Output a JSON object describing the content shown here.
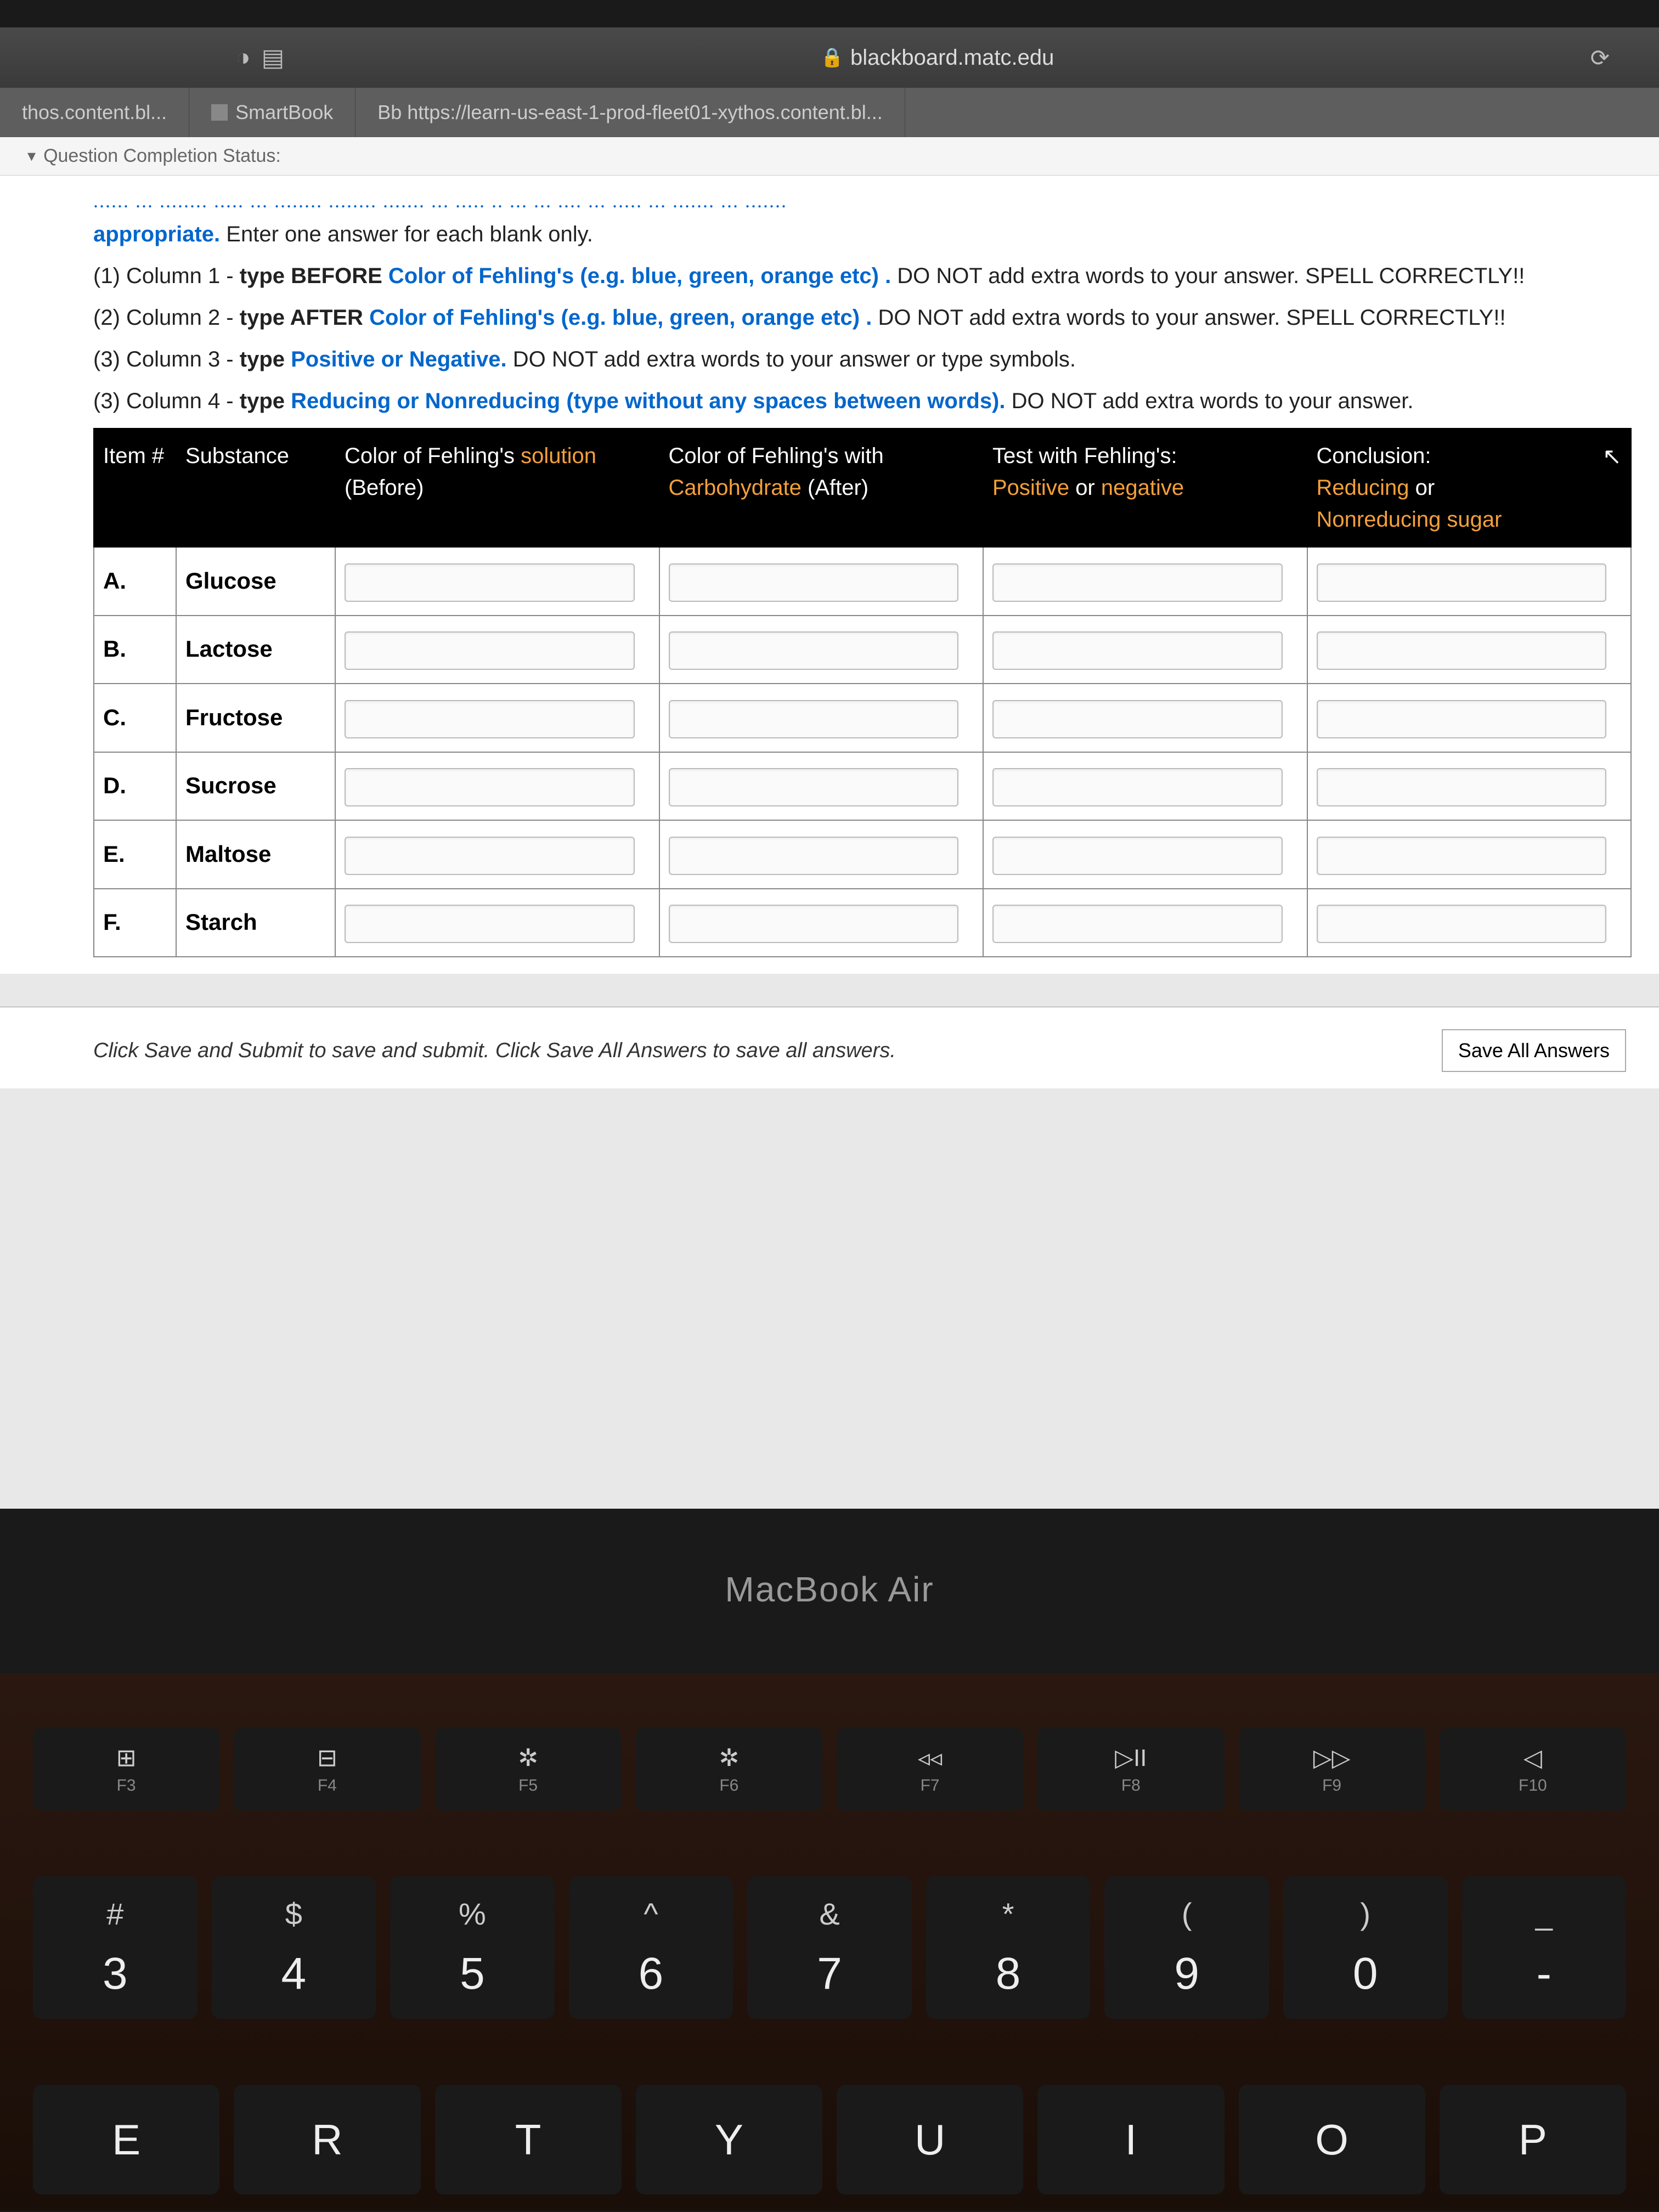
{
  "browser": {
    "url_domain": "blackboard.matc.edu",
    "tabs": [
      {
        "label": "thos.content.bl..."
      },
      {
        "label": "SmartBook"
      },
      {
        "label": "Bb https://learn-us-east-1-prod-fleet01-xythos.content.bl..."
      }
    ],
    "completion_status_label": "Question Completion Status:"
  },
  "instructions": {
    "line0": "appropriate.",
    "line0b": " Enter one answer for each blank only.",
    "l1a": "(1) Column 1 - ",
    "l1b": "type BEFORE ",
    "l1c": "Color of Fehling's (e.g. blue, green, orange etc) . ",
    "l1d": "DO NOT add extra words to your answer. SPELL CORRECTLY!!",
    "l2a": "(2) Column 2 - ",
    "l2b": "type AFTER ",
    "l2c": "Color of Fehling's (e.g. blue, green, orange etc) . ",
    "l2d": "DO NOT add extra words to your answer. SPELL CORRECTLY!!",
    "l3a": "(3) Column 3 - ",
    "l3b": "type ",
    "l3c": "Positive or Negative. ",
    "l3d": "DO NOT add extra words to your answer or type symbols.",
    "l4a": "(3) Column 4 - ",
    "l4b": "type ",
    "l4c": "Reducing or Nonreducing (type without any spaces between words). ",
    "l4d": "DO NOT add extra words to your answer."
  },
  "table": {
    "headers": {
      "item": "Item #",
      "substance": "Substance",
      "before_a": "Color of Fehling's ",
      "before_b": "solution",
      "before_c": " (Before)",
      "after_a": "Color of Fehling's with ",
      "after_b": "Carbohydrate",
      "after_c": " (After)",
      "test_a": "Test with Fehling's: ",
      "test_b": "Positive",
      "test_c": " or ",
      "test_d": "negative",
      "conc_a": "Conclusion:",
      "conc_b": "Reducing",
      "conc_c": " or ",
      "conc_d": "Nonreducing sugar"
    },
    "rows": [
      {
        "id": "A.",
        "substance": "Glucose"
      },
      {
        "id": "B.",
        "substance": "Lactose"
      },
      {
        "id": "C.",
        "substance": "Fructose"
      },
      {
        "id": "D.",
        "substance": "Sucrose"
      },
      {
        "id": "E.",
        "substance": "Maltose"
      },
      {
        "id": "F.",
        "substance": "Starch"
      }
    ]
  },
  "footer": {
    "save_hint": "Click Save and Submit to save and submit. Click Save All Answers to save all answers.",
    "save_all_btn": "Save All Answers"
  },
  "laptop_label": "MacBook Air",
  "keyboard": {
    "fn": [
      {
        "sym": "⊞",
        "lbl": "F3"
      },
      {
        "sym": "⊟",
        "lbl": "F4"
      },
      {
        "sym": "✲",
        "lbl": "F5"
      },
      {
        "sym": "✲",
        "lbl": "F6"
      },
      {
        "sym": "◃◃",
        "lbl": "F7"
      },
      {
        "sym": "▷II",
        "lbl": "F8"
      },
      {
        "sym": "▷▷",
        "lbl": "F9"
      },
      {
        "sym": "◁",
        "lbl": "F10"
      }
    ],
    "num": [
      {
        "upper": "#",
        "lower": "3"
      },
      {
        "upper": "$",
        "lower": "4"
      },
      {
        "upper": "%",
        "lower": "5"
      },
      {
        "upper": "^",
        "lower": "6"
      },
      {
        "upper": "&",
        "lower": "7"
      },
      {
        "upper": "*",
        "lower": "8"
      },
      {
        "upper": "(",
        "lower": "9"
      },
      {
        "upper": ")",
        "lower": "0"
      },
      {
        "upper": "_",
        "lower": "-"
      }
    ],
    "letters": [
      "E",
      "R",
      "T",
      "Y",
      "U",
      "I",
      "O",
      "P"
    ]
  }
}
